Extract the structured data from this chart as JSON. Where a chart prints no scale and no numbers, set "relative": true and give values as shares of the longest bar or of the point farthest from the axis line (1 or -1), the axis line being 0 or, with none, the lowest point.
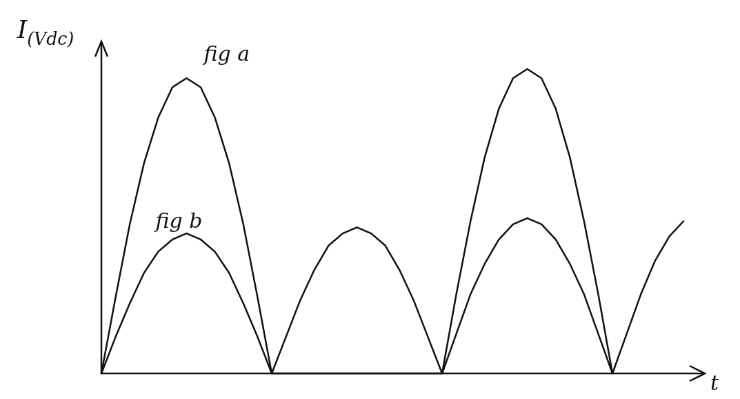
{
  "chart_data": {
    "type": "line",
    "xlabel": "t",
    "ylabel": "I$_{(Vdc)}$",
    "relative": true,
    "categories": [
      null,
      null,
      null,
      null,
      null,
      null,
      null,
      null,
      null,
      null,
      null,
      null,
      null,
      null,
      null,
      null,
      null,
      null,
      null,
      null,
      null,
      null,
      null,
      null,
      null,
      null,
      null,
      null,
      null,
      null,
      null,
      null,
      null,
      null,
      null,
      null,
      null,
      null,
      null,
      null,
      null,
      null
    ],
    "series": [
      {
        "name": "fig a",
        "color": "#111111",
        "values": [
          0,
          0.25,
          0.49,
          0.69,
          0.84,
          0.94,
          0.97,
          0.94,
          0.84,
          0.69,
          0.49,
          0.25,
          0,
          0,
          0,
          0,
          0,
          0,
          0,
          0,
          0,
          0,
          0,
          0,
          0,
          0.26,
          0.5,
          0.71,
          0.87,
          0.97,
          1,
          0.97,
          0.87,
          0.71,
          0.5,
          0.26,
          0,
          null,
          null,
          null,
          null,
          null
        ]
      },
      {
        "name": "fig b",
        "color": "#111111",
        "values": [
          0,
          0.12,
          0.23,
          0.33,
          0.4,
          0.44,
          0.46,
          0.44,
          0.4,
          0.33,
          0.23,
          0.12,
          0,
          0.12,
          0.24,
          0.34,
          0.42,
          0.46,
          0.48,
          0.46,
          0.42,
          0.34,
          0.24,
          0.12,
          0,
          0.13,
          0.26,
          0.36,
          0.44,
          0.49,
          0.51,
          0.49,
          0.44,
          0.36,
          0.26,
          0.13,
          0,
          0.13,
          0.26,
          0.37,
          0.45,
          0.5
        ]
      }
    ]
  }
}
